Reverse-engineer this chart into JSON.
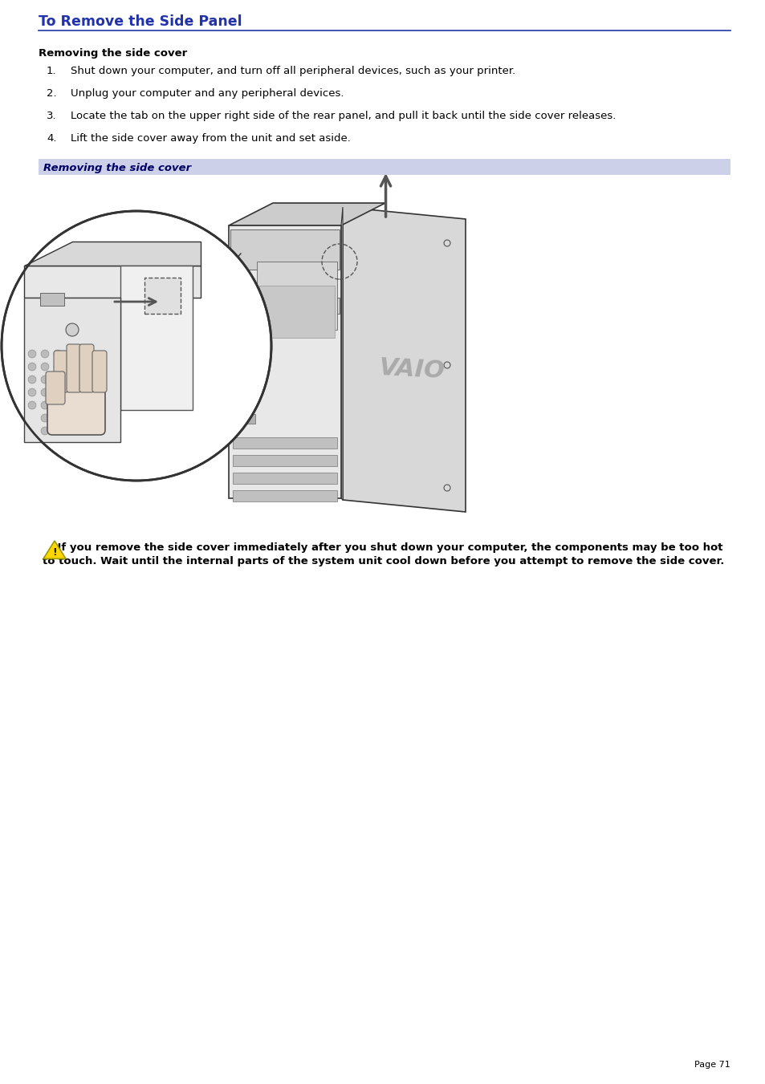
{
  "title": "To Remove the Side Panel",
  "title_color": "#2233aa",
  "title_fontsize": 12.5,
  "title_underline_color": "#2233aa",
  "bg_color": "#ffffff",
  "section_heading": "Removing the side cover",
  "section_heading_fontsize": 9.5,
  "steps": [
    "Shut down your computer, and turn off all peripheral devices, such as your printer.",
    "Unplug your computer and any peripheral devices.",
    "Locate the tab on the upper right side of the rear panel, and pull it back until the side cover releases.",
    "Lift the side cover away from the unit and set aside."
  ],
  "steps_fontsize": 9.5,
  "caption_bar_text": "Removing the side cover",
  "caption_bar_bg": "#ccd0e8",
  "caption_bar_text_color": "#000066",
  "caption_bar_fontsize": 9.5,
  "warning_text_line1": "    If you remove the side cover immediately after you shut down your computer, the components may be too hot",
  "warning_text_line2": "to touch. Wait until the internal parts of the system unit cool down before you attempt to remove the side cover.",
  "warning_fontsize": 9.5,
  "page_number": "Page 71",
  "page_number_fontsize": 8
}
